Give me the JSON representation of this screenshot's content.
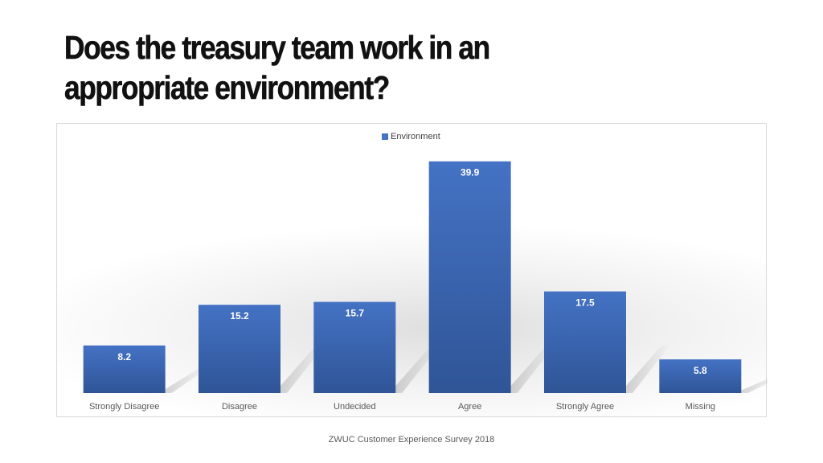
{
  "slide": {
    "title": "Does the treasury team work in an appropriate environment?",
    "footer": "ZWUC Customer Experience Survey 2018"
  },
  "colors": {
    "bar": "#4472c4",
    "bar_dark": "#2f5597",
    "label_text": "#ffffff",
    "axis_text": "#595959"
  },
  "chart_data": {
    "type": "bar",
    "title": "",
    "xlabel": "",
    "ylabel": "",
    "categories": [
      "Strongly Disagree",
      "Disagree",
      "Undecided",
      "Agree",
      "Strongly Agree",
      "Missing"
    ],
    "series": [
      {
        "name": "Environment",
        "values": [
          8.2,
          15.2,
          15.7,
          39.9,
          17.5,
          5.8
        ],
        "data_labels": [
          "8.2",
          "15.2",
          "15.7",
          "39.9",
          "17.5",
          "5.8"
        ]
      }
    ],
    "ylim": [
      0,
      40
    ],
    "grid": false,
    "legend": "top-center",
    "data_labels": "inside"
  }
}
